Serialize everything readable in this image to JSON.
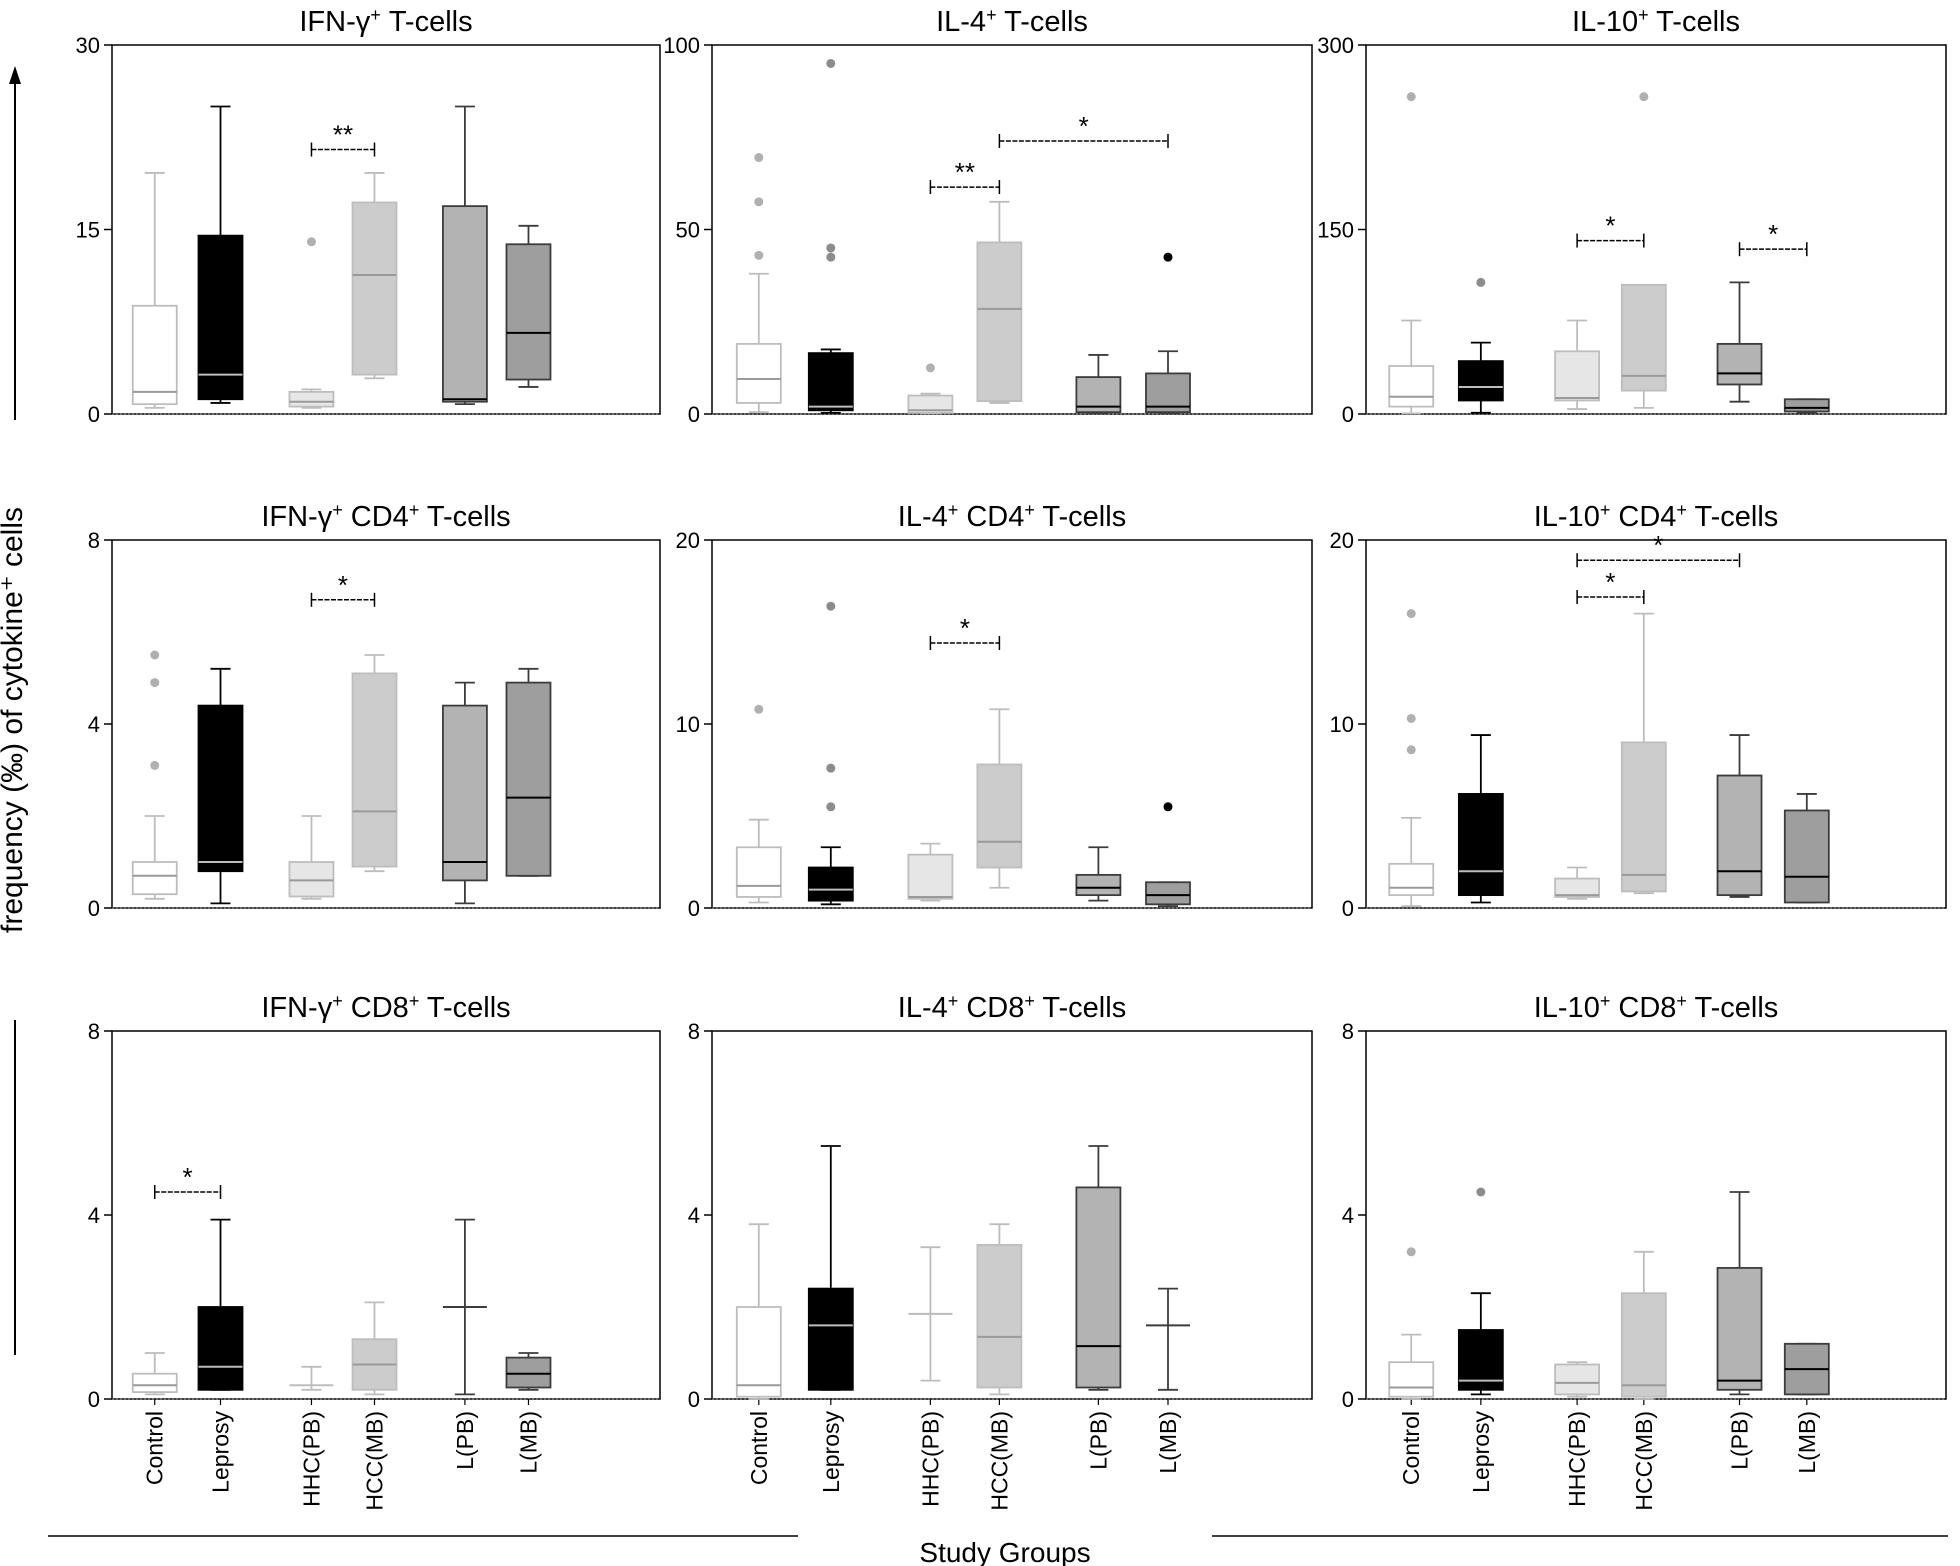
{
  "figure": {
    "ylabel": "frequency (‰) of cytokine⁺ cells",
    "xlabel": "Study Groups",
    "groups": [
      "Control",
      "Leprosy",
      "HHC(PB)",
      "HCC(MB)",
      "L(PB)",
      "L(MB)"
    ],
    "group_fills": [
      "#ffffff",
      "#000000",
      "#e6e6e6",
      "#cccccc",
      "#b3b3b3",
      "#9e9e9e"
    ],
    "group_strokes": [
      "#bdbdbd",
      "#000000",
      "#bdbdbd",
      "#bdbdbd",
      "#3c3c3c",
      "#3c3c3c"
    ]
  },
  "chart_data": [
    {
      "type": "box",
      "title": "IFN-γ⁺ T-cells",
      "title_main": "IFN-γ",
      "title_rest": " T-cells",
      "ylim": [
        0,
        30
      ],
      "yticks": [
        0,
        15,
        30
      ],
      "boxes": [
        {
          "group": "Control",
          "whisker_low": 0.5,
          "q1": 0.8,
          "median": 1.8,
          "q3": 8.8,
          "whisker_high": 19.6,
          "outliers": []
        },
        {
          "group": "Leprosy",
          "whisker_low": 0.9,
          "q1": 1.2,
          "median": 3.2,
          "q3": 14.5,
          "whisker_high": 25.0,
          "outliers": []
        },
        {
          "group": "HHC(PB)",
          "whisker_low": 0.5,
          "q1": 0.6,
          "median": 1.0,
          "q3": 1.8,
          "whisker_high": 2.0,
          "outliers": [
            14.0
          ]
        },
        {
          "group": "HCC(MB)",
          "whisker_low": 2.9,
          "q1": 3.2,
          "median": 11.3,
          "q3": 17.2,
          "whisker_high": 19.6,
          "outliers": []
        },
        {
          "group": "L(PB)",
          "whisker_low": 0.8,
          "q1": 1.0,
          "median": 1.2,
          "q3": 16.9,
          "whisker_high": 25.0,
          "outliers": []
        },
        {
          "group": "L(MB)",
          "whisker_low": 2.2,
          "q1": 2.8,
          "median": 6.6,
          "q3": 13.8,
          "whisker_high": 15.3,
          "outliers": []
        }
      ],
      "sig": [
        {
          "from": 2,
          "to": 3,
          "y": 21.5,
          "label": "**"
        }
      ]
    },
    {
      "type": "box",
      "title": "IL-4⁺ T-cells",
      "title_main": "IL-4",
      "title_rest": " T-cells",
      "ylim": [
        0,
        100
      ],
      "yticks": [
        0,
        50,
        100
      ],
      "boxes": [
        {
          "group": "Control",
          "whisker_low": 0.5,
          "q1": 3.0,
          "median": 9.5,
          "q3": 19.0,
          "whisker_high": 38.0,
          "outliers": [
            43.0,
            57.5,
            69.5
          ]
        },
        {
          "group": "Leprosy",
          "whisker_low": 0.3,
          "q1": 1.0,
          "median": 2.0,
          "q3": 16.5,
          "whisker_high": 17.5,
          "outliers": [
            42.5,
            45.0,
            95.0
          ]
        },
        {
          "group": "HHC(PB)",
          "whisker_low": 0.2,
          "q1": 0.3,
          "median": 1.0,
          "q3": 5.0,
          "whisker_high": 5.5,
          "outliers": [
            12.5
          ]
        },
        {
          "group": "HCC(MB)",
          "whisker_low": 3.0,
          "q1": 3.5,
          "median": 28.5,
          "q3": 46.5,
          "whisker_high": 57.5,
          "outliers": []
        },
        {
          "group": "L(PB)",
          "whisker_low": 0.2,
          "q1": 0.5,
          "median": 2.0,
          "q3": 10.0,
          "whisker_high": 16.0,
          "outliers": []
        },
        {
          "group": "L(MB)",
          "whisker_low": 0.2,
          "q1": 0.5,
          "median": 2.0,
          "q3": 11.0,
          "whisker_high": 17.0,
          "outliers": [
            42.5
          ]
        }
      ],
      "sig": [
        {
          "from": 2,
          "to": 3,
          "y": 61.5,
          "label": "**"
        },
        {
          "from": 3,
          "to": 5,
          "y": 74.0,
          "label": "*"
        }
      ]
    },
    {
      "type": "box",
      "title": "IL-10⁺ T-cells",
      "title_main": "IL-10",
      "title_rest": " T-cells",
      "ylim": [
        0,
        300
      ],
      "yticks": [
        0,
        150,
        300
      ],
      "boxes": [
        {
          "group": "Control",
          "whisker_low": 0.5,
          "q1": 6.0,
          "median": 14.0,
          "q3": 39.0,
          "whisker_high": 76.0,
          "outliers": [
            258.0
          ]
        },
        {
          "group": "Leprosy",
          "whisker_low": 1.0,
          "q1": 11.0,
          "median": 22.0,
          "q3": 43.0,
          "whisker_high": 58.0,
          "outliers": [
            107.0
          ]
        },
        {
          "group": "HHC(PB)",
          "whisker_low": 4.0,
          "q1": 11.0,
          "median": 13.0,
          "q3": 51.0,
          "whisker_high": 76.0,
          "outliers": []
        },
        {
          "group": "HCC(MB)",
          "whisker_low": 5.0,
          "q1": 19.0,
          "median": 31.0,
          "q3": 105.0,
          "whisker_high": 105.0,
          "outliers": [
            258.0
          ]
        },
        {
          "group": "L(PB)",
          "whisker_low": 10.0,
          "q1": 24.0,
          "median": 33.0,
          "q3": 57.0,
          "whisker_high": 107.0,
          "outliers": []
        },
        {
          "group": "L(MB)",
          "whisker_low": 1.0,
          "q1": 2.0,
          "median": 5.0,
          "q3": 12.0,
          "whisker_high": 12.0,
          "outliers": []
        }
      ],
      "sig": [
        {
          "from": 2,
          "to": 3,
          "y": 141.0,
          "label": "*"
        },
        {
          "from": 4,
          "to": 5,
          "y": 134.0,
          "label": "*"
        }
      ]
    },
    {
      "type": "box",
      "title": "IFN-γ⁺ CD4⁺ T-cells",
      "title_main": "IFN-γ",
      "title_rest": " CD4",
      "title_rest2": " T-cells",
      "ylim": [
        0,
        8
      ],
      "yticks": [
        0,
        4,
        8
      ],
      "boxes": [
        {
          "group": "Control",
          "whisker_low": 0.2,
          "q1": 0.3,
          "median": 0.7,
          "q3": 1.0,
          "whisker_high": 2.0,
          "outliers": [
            3.1,
            4.9,
            5.5
          ]
        },
        {
          "group": "Leprosy",
          "whisker_low": 0.1,
          "q1": 0.8,
          "median": 1.0,
          "q3": 4.4,
          "whisker_high": 5.2,
          "outliers": []
        },
        {
          "group": "HHC(PB)",
          "whisker_low": 0.2,
          "q1": 0.25,
          "median": 0.6,
          "q3": 1.0,
          "whisker_high": 2.0,
          "outliers": []
        },
        {
          "group": "HCC(MB)",
          "whisker_low": 0.8,
          "q1": 0.9,
          "median": 2.1,
          "q3": 5.1,
          "whisker_high": 5.5,
          "outliers": []
        },
        {
          "group": "L(PB)",
          "whisker_low": 0.1,
          "q1": 0.6,
          "median": 1.0,
          "q3": 4.4,
          "whisker_high": 4.9,
          "outliers": []
        },
        {
          "group": "L(MB)",
          "whisker_low": 0.7,
          "q1": 0.7,
          "median": 2.4,
          "q3": 4.9,
          "whisker_high": 5.2,
          "outliers": []
        }
      ],
      "sig": [
        {
          "from": 2,
          "to": 3,
          "y": 6.7,
          "label": "*"
        }
      ]
    },
    {
      "type": "box",
      "title": "IL-4⁺ CD4⁺ T-cells",
      "title_main": "IL-4",
      "title_rest": " CD4",
      "title_rest2": " T-cells",
      "ylim": [
        0,
        20
      ],
      "yticks": [
        0,
        10,
        20
      ],
      "boxes": [
        {
          "group": "Control",
          "whisker_low": 0.3,
          "q1": 0.6,
          "median": 1.2,
          "q3": 3.3,
          "whisker_high": 4.8,
          "outliers": [
            10.8
          ]
        },
        {
          "group": "Leprosy",
          "whisker_low": 0.2,
          "q1": 0.4,
          "median": 1.0,
          "q3": 2.2,
          "whisker_high": 3.3,
          "outliers": [
            5.5,
            7.6,
            16.4
          ]
        },
        {
          "group": "HHC(PB)",
          "whisker_low": 0.4,
          "q1": 0.5,
          "median": 0.6,
          "q3": 2.9,
          "whisker_high": 3.5,
          "outliers": []
        },
        {
          "group": "HCC(MB)",
          "whisker_low": 1.1,
          "q1": 2.2,
          "median": 3.6,
          "q3": 7.8,
          "whisker_high": 10.8,
          "outliers": []
        },
        {
          "group": "L(PB)",
          "whisker_low": 0.4,
          "q1": 0.7,
          "median": 1.1,
          "q3": 1.8,
          "whisker_high": 3.3,
          "outliers": []
        },
        {
          "group": "L(MB)",
          "whisker_low": 0.1,
          "q1": 0.2,
          "median": 0.7,
          "q3": 1.4,
          "whisker_high": 1.4,
          "outliers": [
            5.5
          ]
        }
      ],
      "sig": [
        {
          "from": 2,
          "to": 3,
          "y": 14.4,
          "label": "*"
        }
      ]
    },
    {
      "type": "box",
      "title": "IL-10⁺ CD4⁺ T-cells",
      "title_main": "IL-10",
      "title_rest": " CD4",
      "title_rest2": " T-cells",
      "ylim": [
        0,
        20
      ],
      "yticks": [
        0,
        10,
        20
      ],
      "boxes": [
        {
          "group": "Control",
          "whisker_low": 0.1,
          "q1": 0.7,
          "median": 1.1,
          "q3": 2.4,
          "whisker_high": 4.9,
          "outliers": [
            8.6,
            10.3,
            16.0
          ]
        },
        {
          "group": "Leprosy",
          "whisker_low": 0.3,
          "q1": 0.7,
          "median": 2.0,
          "q3": 6.2,
          "whisker_high": 9.4,
          "outliers": []
        },
        {
          "group": "HHC(PB)",
          "whisker_low": 0.5,
          "q1": 0.6,
          "median": 0.7,
          "q3": 1.6,
          "whisker_high": 2.2,
          "outliers": []
        },
        {
          "group": "HCC(MB)",
          "whisker_low": 0.8,
          "q1": 0.9,
          "median": 1.8,
          "q3": 9.0,
          "whisker_high": 16.0,
          "outliers": []
        },
        {
          "group": "L(PB)",
          "whisker_low": 0.6,
          "q1": 0.7,
          "median": 2.0,
          "q3": 7.2,
          "whisker_high": 9.4,
          "outliers": []
        },
        {
          "group": "L(MB)",
          "whisker_low": 0.3,
          "q1": 0.3,
          "median": 1.7,
          "q3": 5.3,
          "whisker_high": 6.2,
          "outliers": []
        }
      ],
      "sig": [
        {
          "from": 2,
          "to": 3,
          "y": 16.9,
          "label": "*"
        },
        {
          "from": 2,
          "to": 4,
          "y": 18.9,
          "label": "*"
        }
      ]
    },
    {
      "type": "box",
      "title": "IFN-γ⁺ CD8⁺ T-cells",
      "title_main": "IFN-γ",
      "title_rest": " CD8",
      "title_rest2": " T-cells",
      "ylim": [
        0,
        8
      ],
      "yticks": [
        0,
        4,
        8
      ],
      "boxes": [
        {
          "group": "Control",
          "whisker_low": 0.1,
          "q1": 0.15,
          "median": 0.3,
          "q3": 0.55,
          "whisker_high": 1.0,
          "outliers": []
        },
        {
          "group": "Leprosy",
          "whisker_low": 0.2,
          "q1": 0.2,
          "median": 0.7,
          "q3": 2.0,
          "whisker_high": 3.9,
          "outliers": []
        },
        {
          "group": "HHC(PB)",
          "whisker_low": 0.2,
          "q1": 0.3,
          "median": 0.3,
          "q3": 0.3,
          "whisker_high": 0.7,
          "outliers": []
        },
        {
          "group": "HCC(MB)",
          "whisker_low": 0.1,
          "q1": 0.2,
          "median": 0.75,
          "q3": 1.3,
          "whisker_high": 2.1,
          "outliers": []
        },
        {
          "group": "L(PB)",
          "whisker_low": 0.1,
          "q1": 2.0,
          "median": 2.0,
          "q3": 2.0,
          "whisker_high": 3.9,
          "outliers": []
        },
        {
          "group": "L(MB)",
          "whisker_low": 0.2,
          "q1": 0.25,
          "median": 0.55,
          "q3": 0.9,
          "whisker_high": 1.0,
          "outliers": []
        }
      ],
      "sig": [
        {
          "from": 0,
          "to": 1,
          "y": 4.5,
          "label": "*"
        }
      ]
    },
    {
      "type": "box",
      "title": "IL-4⁺ CD8⁺ T-cells",
      "title_main": "IL-4",
      "title_rest": " CD8",
      "title_rest2": " T-cells",
      "ylim": [
        0,
        8
      ],
      "yticks": [
        0,
        4,
        8
      ],
      "boxes": [
        {
          "group": "Control",
          "whisker_low": 0.0,
          "q1": 0.05,
          "median": 0.3,
          "q3": 2.0,
          "whisker_high": 3.8,
          "outliers": []
        },
        {
          "group": "Leprosy",
          "whisker_low": 0.2,
          "q1": 0.2,
          "median": 1.6,
          "q3": 2.4,
          "whisker_high": 5.5,
          "outliers": []
        },
        {
          "group": "HHC(PB)",
          "whisker_low": 0.4,
          "q1": 1.85,
          "median": 1.85,
          "q3": 1.85,
          "whisker_high": 3.3,
          "outliers": []
        },
        {
          "group": "HCC(MB)",
          "whisker_low": 0.1,
          "q1": 0.25,
          "median": 1.35,
          "q3": 3.35,
          "whisker_high": 3.8,
          "outliers": []
        },
        {
          "group": "L(PB)",
          "whisker_low": 0.2,
          "q1": 0.25,
          "median": 1.15,
          "q3": 4.6,
          "whisker_high": 5.5,
          "outliers": []
        },
        {
          "group": "L(MB)",
          "whisker_low": 0.2,
          "q1": 1.6,
          "median": 1.6,
          "q3": 1.6,
          "whisker_high": 2.4,
          "outliers": []
        }
      ],
      "sig": []
    },
    {
      "type": "box",
      "title": "IL-10⁺ CD8⁺ T-cells",
      "title_main": "IL-10",
      "title_rest": " CD8",
      "title_rest2": " T-cells",
      "ylim": [
        0,
        8
      ],
      "yticks": [
        0,
        4,
        8
      ],
      "boxes": [
        {
          "group": "Control",
          "whisker_low": 0.0,
          "q1": 0.05,
          "median": 0.25,
          "q3": 0.8,
          "whisker_high": 1.4,
          "outliers": [
            3.2
          ]
        },
        {
          "group": "Leprosy",
          "whisker_low": 0.1,
          "q1": 0.2,
          "median": 0.4,
          "q3": 1.5,
          "whisker_high": 2.3,
          "outliers": [
            4.5
          ]
        },
        {
          "group": "HHC(PB)",
          "whisker_low": 0.05,
          "q1": 0.1,
          "median": 0.35,
          "q3": 0.75,
          "whisker_high": 0.8,
          "outliers": []
        },
        {
          "group": "HCC(MB)",
          "whisker_low": 0.0,
          "q1": 0.05,
          "median": 0.3,
          "q3": 2.3,
          "whisker_high": 3.2,
          "outliers": []
        },
        {
          "group": "L(PB)",
          "whisker_low": 0.1,
          "q1": 0.2,
          "median": 0.4,
          "q3": 2.85,
          "whisker_high": 4.5,
          "outliers": []
        },
        {
          "group": "L(MB)",
          "whisker_low": 0.1,
          "q1": 0.1,
          "median": 0.65,
          "q3": 1.2,
          "whisker_high": 1.2,
          "outliers": []
        }
      ],
      "sig": []
    }
  ]
}
